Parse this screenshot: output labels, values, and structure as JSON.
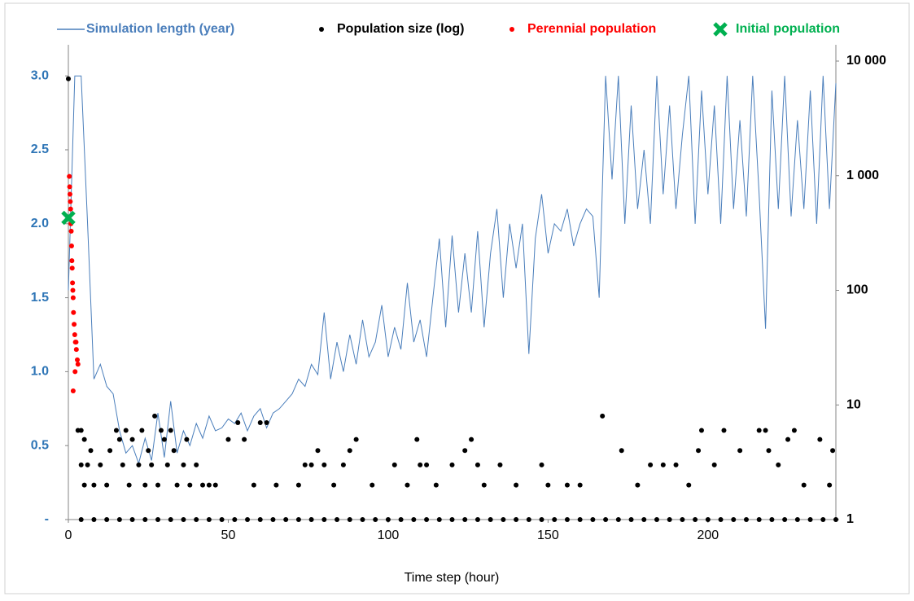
{
  "chart_data": {
    "type": "combo",
    "x_label": "Time step (hour)",
    "xlim": [
      0,
      240
    ],
    "xticks": [
      0,
      50,
      100,
      150,
      200
    ],
    "ylim": [
      0,
      3.1
    ],
    "yticks": [
      {
        "value": 0,
        "label": "-"
      },
      0.5,
      {
        "value": 1,
        "label": "1.0"
      },
      1.5,
      {
        "value": 2,
        "label": "2.0"
      },
      2.5,
      {
        "value": 3,
        "label": "3.0"
      }
    ],
    "y2lim": [
      1,
      10000
    ],
    "y2log": true,
    "y2ticks": [
      1,
      10,
      100,
      {
        "value": 1000,
        "label": "1 000"
      },
      {
        "value": 10000,
        "label": "10 000"
      }
    ],
    "grid": false,
    "legend": "top",
    "series": [
      {
        "name": "Simulation length (year)",
        "type": "line",
        "color": "#4a7ebb",
        "axis": "y",
        "x": [
          0,
          2,
          4,
          6,
          8,
          10,
          12,
          14,
          16,
          18,
          20,
          22,
          24,
          26,
          28,
          30,
          32,
          34,
          36,
          38,
          40,
          42,
          44,
          46,
          48,
          50,
          52,
          54,
          56,
          58,
          60,
          62,
          64,
          66,
          68,
          70,
          72,
          74,
          76,
          78,
          80,
          82,
          84,
          86,
          88,
          90,
          92,
          94,
          96,
          98,
          100,
          102,
          104,
          106,
          108,
          110,
          112,
          114,
          116,
          118,
          120,
          122,
          124,
          126,
          128,
          130,
          132,
          134,
          136,
          138,
          140,
          142,
          144,
          146,
          148,
          150,
          152,
          154,
          156,
          158,
          160,
          162,
          164,
          166,
          168,
          170,
          172,
          174,
          176,
          178,
          180,
          182,
          184,
          186,
          188,
          190,
          192,
          194,
          196,
          198,
          200,
          202,
          204,
          206,
          208,
          210,
          212,
          214,
          216,
          218,
          220,
          222,
          224,
          226,
          228,
          230,
          232,
          234,
          236,
          238,
          240
        ],
        "values": [
          1.55,
          3.0,
          3.0,
          2.0,
          0.95,
          1.05,
          0.9,
          0.85,
          0.6,
          0.45,
          0.5,
          0.38,
          0.55,
          0.4,
          0.72,
          0.42,
          0.8,
          0.45,
          0.6,
          0.5,
          0.65,
          0.55,
          0.7,
          0.6,
          0.62,
          0.68,
          0.65,
          0.72,
          0.6,
          0.7,
          0.75,
          0.62,
          0.72,
          0.75,
          0.8,
          0.85,
          0.95,
          0.9,
          1.05,
          0.98,
          1.4,
          0.95,
          1.2,
          1.0,
          1.25,
          1.05,
          1.35,
          1.1,
          1.2,
          1.45,
          1.1,
          1.3,
          1.15,
          1.6,
          1.2,
          1.35,
          1.1,
          1.5,
          1.9,
          1.3,
          1.92,
          1.4,
          1.8,
          1.4,
          1.95,
          1.3,
          1.8,
          2.1,
          1.5,
          2.0,
          1.7,
          2.0,
          1.12,
          1.9,
          2.2,
          1.8,
          2.0,
          1.95,
          2.1,
          1.85,
          2.0,
          2.1,
          2.05,
          1.5,
          3.0,
          2.3,
          3.0,
          2.0,
          2.8,
          2.1,
          2.5,
          2.0,
          3.0,
          2.2,
          2.8,
          2.1,
          2.6,
          3.0,
          2.0,
          2.9,
          2.2,
          2.8,
          2.0,
          3.0,
          2.1,
          2.7,
          2.05,
          3.0,
          2.2,
          1.29,
          2.9,
          2.1,
          3.0,
          2.05,
          2.7,
          2.1,
          2.9,
          2.0,
          3.0,
          2.1,
          2.95
        ]
      },
      {
        "name": "Population size (log)",
        "type": "scatter",
        "color": "#000000",
        "axis": "y2",
        "x": [
          4,
          8,
          12,
          16,
          20,
          24,
          28,
          32,
          36,
          40,
          44,
          48,
          52,
          56,
          60,
          64,
          68,
          72,
          76,
          80,
          84,
          88,
          92,
          96,
          100,
          104,
          108,
          112,
          116,
          120,
          124,
          128,
          132,
          136,
          140,
          144,
          148,
          152,
          156,
          160,
          164,
          168,
          172,
          176,
          180,
          184,
          188,
          192,
          196,
          200,
          204,
          208,
          212,
          216,
          220,
          224,
          228,
          232,
          236,
          240,
          0,
          3,
          4,
          5,
          4,
          6,
          7,
          5,
          8,
          10,
          12,
          13,
          15,
          16,
          17,
          18,
          19,
          20,
          22,
          23,
          24,
          25,
          26,
          27,
          28,
          29,
          30,
          31,
          32,
          33,
          34,
          36,
          37,
          38,
          40,
          42,
          44,
          46,
          50,
          53,
          55,
          58,
          60,
          62,
          65,
          72,
          74,
          76,
          78,
          80,
          83,
          86,
          88,
          90,
          95,
          102,
          106,
          109,
          110,
          112,
          115,
          120,
          124,
          126,
          128,
          130,
          135,
          140,
          148,
          150,
          156,
          160,
          167,
          173,
          178,
          182,
          186,
          190,
          194,
          197,
          198,
          202,
          205,
          210,
          216,
          218,
          219,
          222,
          225,
          227,
          230,
          235,
          238,
          239
        ],
        "values": [
          1,
          1,
          1,
          1,
          1,
          1,
          1,
          1,
          1,
          1,
          1,
          1,
          1,
          1,
          1,
          1,
          1,
          1,
          1,
          1,
          1,
          1,
          1,
          1,
          1,
          1,
          1,
          1,
          1,
          1,
          1,
          1,
          1,
          1,
          1,
          1,
          1,
          1,
          1,
          1,
          1,
          1,
          1,
          1,
          1,
          1,
          1,
          1,
          1,
          1,
          1,
          1,
          1,
          1,
          1,
          1,
          1,
          1,
          1,
          1,
          7000,
          6,
          6,
          5,
          3,
          3,
          4,
          2,
          2,
          3,
          2,
          4,
          6,
          5,
          3,
          6,
          2,
          5,
          3,
          6,
          2,
          4,
          3,
          8,
          2,
          6,
          5,
          3,
          6,
          4,
          2,
          3,
          5,
          2,
          3,
          2,
          2,
          2,
          5,
          7,
          5,
          2,
          7,
          7,
          2,
          2,
          3,
          3,
          4,
          3,
          2,
          3,
          4,
          5,
          2,
          3,
          2,
          5,
          3,
          3,
          2,
          3,
          4,
          5,
          3,
          2,
          3,
          2,
          3,
          2,
          2,
          2,
          8,
          4,
          2,
          3,
          3,
          3,
          2,
          4,
          6,
          3,
          6,
          4,
          6,
          6,
          4,
          3,
          5,
          6,
          2,
          5,
          2,
          4
        ]
      },
      {
        "name": "Perennial population",
        "type": "scatter",
        "color": "#ff0000",
        "axis": "y",
        "x": [
          0.3,
          0.4,
          0.5,
          0.6,
          0.7,
          0.8,
          0.9,
          1,
          1.1,
          1.2,
          1.3,
          1.4,
          1.5,
          1.6,
          1.8,
          2,
          2.2,
          2.5,
          2.8,
          3,
          1.5,
          2.4,
          2.1
        ],
        "values": [
          2.32,
          2.25,
          2.2,
          2.15,
          2.1,
          2.0,
          1.95,
          1.85,
          1.75,
          1.7,
          1.6,
          1.55,
          1.5,
          1.4,
          1.32,
          1.25,
          1.2,
          1.15,
          1.08,
          1.05,
          0.87,
          1.2,
          1.0
        ]
      },
      {
        "name": "Initial population",
        "type": "cross",
        "color": "#00b050",
        "axis": "y",
        "x": [
          0
        ],
        "values": [
          2.04
        ]
      }
    ]
  }
}
